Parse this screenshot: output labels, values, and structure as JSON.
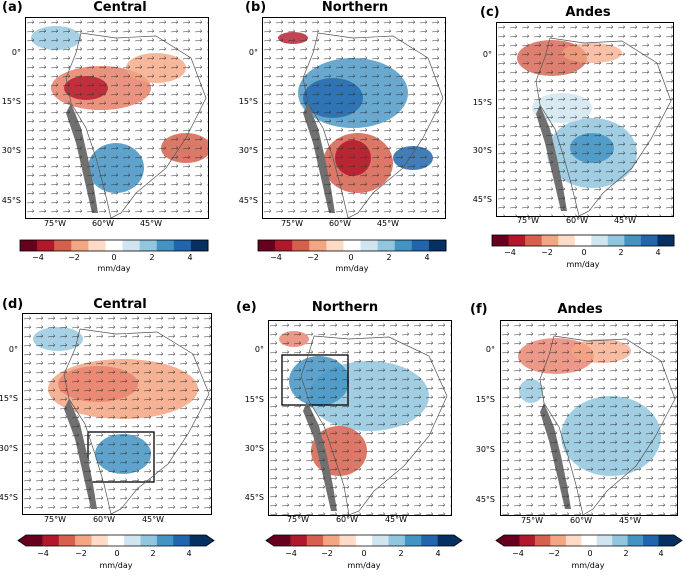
{
  "panels": [
    {
      "label": "(a)",
      "title": "Central"
    },
    {
      "label": "(b)",
      "title": "Northern"
    },
    {
      "label": "(c)",
      "title": "Andes"
    },
    {
      "label": "(d)",
      "title": "Central"
    },
    {
      "label": "(e)",
      "title": "Northern"
    },
    {
      "label": "(f)",
      "title": "Andes"
    }
  ],
  "axes": {
    "lat_labels": [
      "0°",
      "15°S",
      "30°S",
      "45°S"
    ],
    "lon_labels": [
      "75°W",
      "60°W",
      "45°W"
    ]
  },
  "colorbar": {
    "ticks": [
      "−4",
      "−2",
      "0",
      "2",
      "4"
    ],
    "unit": "mm/day",
    "colors": [
      "#67001f",
      "#b2182b",
      "#d6604d",
      "#f4a582",
      "#fddbc7",
      "#ffffff",
      "#d1e5f0",
      "#92c5de",
      "#4393c3",
      "#2166ac",
      "#053061"
    ]
  }
}
